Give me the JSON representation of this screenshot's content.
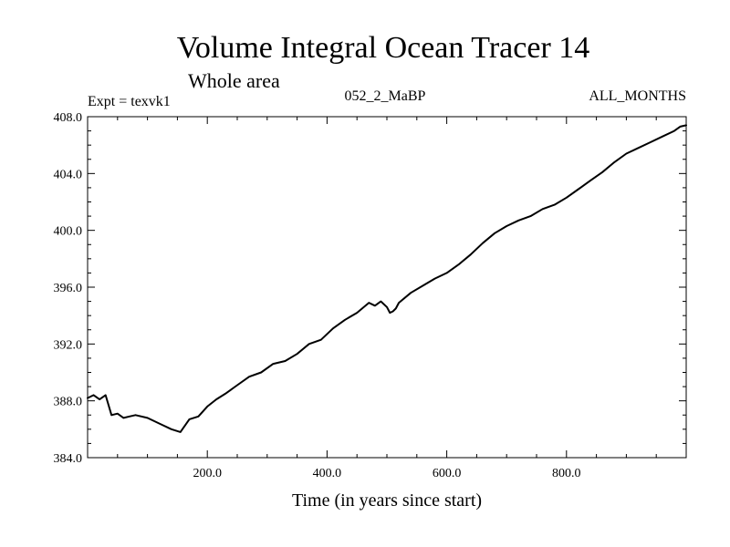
{
  "chart_data": {
    "type": "line",
    "title": "Volume Integral Ocean Tracer 14",
    "subtitle": "Whole area",
    "left_label": "Expt = texvk1",
    "center_label": "052_2_MaBP",
    "right_label": "ALL_MONTHS",
    "xlabel": "Time (in years since start)",
    "ylabel": "",
    "xlim": [
      0,
      1000
    ],
    "ylim": [
      384.0,
      408.0
    ],
    "x_ticks": [
      200,
      400,
      600,
      800
    ],
    "x_tick_labels": [
      "200.0",
      "400.0",
      "600.0",
      "800.0"
    ],
    "y_ticks": [
      384,
      388,
      392,
      396,
      400,
      404,
      408
    ],
    "y_tick_labels": [
      "384.0",
      "388.0",
      "392.0",
      "396.0",
      "400.0",
      "404.0",
      "408.0"
    ],
    "grid": false,
    "series": [
      {
        "name": "Volume Integral Ocean Tracer 14",
        "color": "#000000",
        "x": [
          0,
          10,
          20,
          30,
          40,
          50,
          60,
          70,
          80,
          100,
          120,
          140,
          155,
          170,
          185,
          200,
          215,
          230,
          250,
          270,
          290,
          310,
          330,
          350,
          370,
          390,
          410,
          430,
          450,
          470,
          480,
          490,
          500,
          505,
          510,
          515,
          520,
          540,
          560,
          580,
          600,
          620,
          640,
          660,
          680,
          700,
          720,
          740,
          760,
          780,
          800,
          820,
          840,
          860,
          880,
          900,
          920,
          940,
          960,
          980,
          990,
          1000
        ],
        "values": [
          388.2,
          388.4,
          388.1,
          388.4,
          387.0,
          387.1,
          386.8,
          386.9,
          387.0,
          386.8,
          386.4,
          386.0,
          385.8,
          386.7,
          386.9,
          387.6,
          388.1,
          388.5,
          389.1,
          389.7,
          390.0,
          390.6,
          390.8,
          391.3,
          392.0,
          392.3,
          393.1,
          393.7,
          394.2,
          394.9,
          394.7,
          395.0,
          394.6,
          394.2,
          394.3,
          394.5,
          394.9,
          395.6,
          396.1,
          396.6,
          397.0,
          397.6,
          398.3,
          399.1,
          399.8,
          400.3,
          400.7,
          401.0,
          401.5,
          401.8,
          402.3,
          402.9,
          403.5,
          404.1,
          404.8,
          405.4,
          405.8,
          406.2,
          406.6,
          407.0,
          407.3,
          407.4
        ]
      }
    ]
  }
}
